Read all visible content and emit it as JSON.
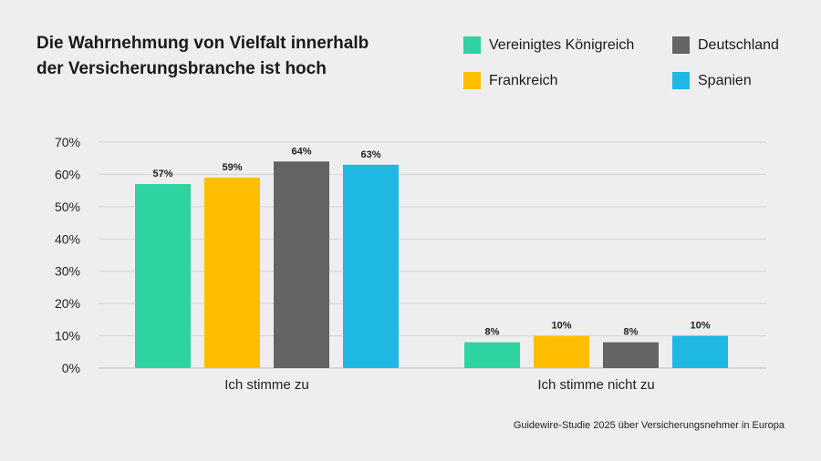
{
  "title_line1": "Die Wahrnehmung von Vielfalt innerhalb",
  "title_line2": "der Versicherungsbranche ist hoch",
  "footnote": "Guidewire-Studie 2025 über Versicherungsnehmer in Europa",
  "chart_data": {
    "type": "bar",
    "title": "Die Wahrnehmung von Vielfalt innerhalb der Versicherungsbranche ist hoch",
    "categories": [
      "Ich stimme zu",
      "Ich stimme nicht zu"
    ],
    "series": [
      {
        "name": "Vereinigtes Königreich",
        "color": "#2ed3a1",
        "values": [
          57,
          8
        ],
        "labels": [
          "57%",
          "8%"
        ]
      },
      {
        "name": "Frankreich",
        "color": "#ffbf00",
        "values": [
          59,
          10
        ],
        "labels": [
          "59%",
          "10%"
        ]
      },
      {
        "name": "Deutschland",
        "color": "#646464",
        "values": [
          64,
          8
        ],
        "labels": [
          "64%",
          "8%"
        ]
      },
      {
        "name": "Spanien",
        "color": "#1fb8e2",
        "values": [
          63,
          10
        ],
        "labels": [
          "63%",
          "10%"
        ]
      }
    ],
    "yticks": [
      "0%",
      "10%",
      "20%",
      "30%",
      "40%",
      "50%",
      "60%",
      "70%"
    ],
    "ylim": [
      0,
      70
    ],
    "legend_position": "top-right",
    "grid": true
  }
}
